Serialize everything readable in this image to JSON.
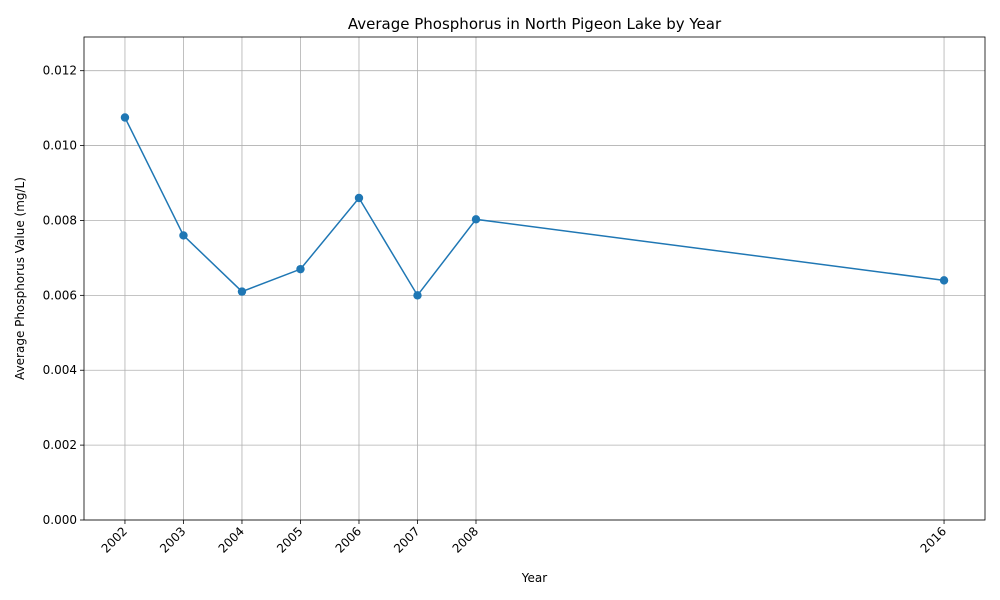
{
  "chart_data": {
    "type": "line",
    "title": "Average Phosphorus in North Pigeon Lake by Year",
    "xlabel": "Year",
    "ylabel": "Average Phosphorus Value (mg/L)",
    "x": [
      2002,
      2003,
      2004,
      2005,
      2006,
      2007,
      2008,
      2016
    ],
    "series": [
      {
        "values": [
          0.01075,
          0.0076,
          0.0061,
          0.0067,
          0.0086,
          0.006,
          0.00803,
          0.0064
        ],
        "color": "#1f77b4",
        "marker": "circle"
      }
    ],
    "xticks": [
      "2002",
      "2003",
      "2004",
      "2005",
      "2006",
      "2007",
      "2008",
      "2016"
    ],
    "yticks": [
      "0.000",
      "0.002",
      "0.004",
      "0.006",
      "0.008",
      "0.010",
      "0.012"
    ],
    "xlim": [
      2001.3,
      2016.7
    ],
    "ylim": [
      0,
      0.0129
    ],
    "grid": true,
    "legend": "none"
  }
}
